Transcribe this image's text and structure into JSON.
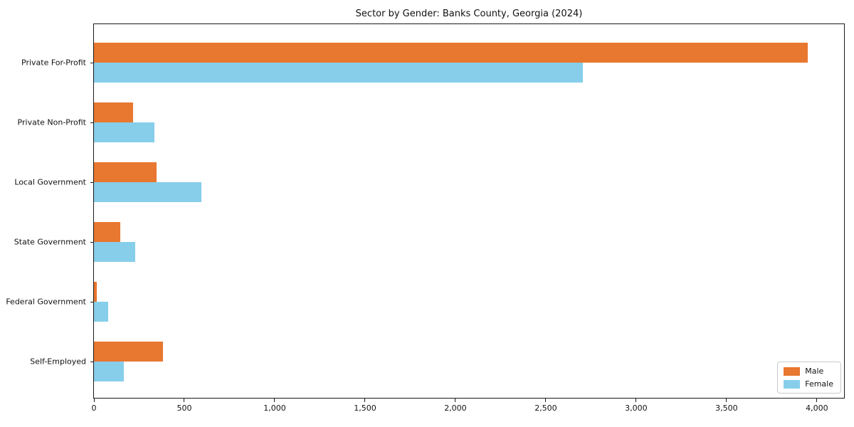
{
  "chart_data": {
    "type": "bar",
    "orientation": "horizontal",
    "title": "Sector by Gender: Banks County, Georgia (2024)",
    "categories": [
      "Private For-Profit",
      "Private Non-Profit",
      "Local Government",
      "State Government",
      "Federal Government",
      "Self-Employed"
    ],
    "series": [
      {
        "name": "Male",
        "color": "#e8772f",
        "values": [
          3950,
          215,
          345,
          145,
          15,
          380
        ]
      },
      {
        "name": "Female",
        "color": "#87ceeb",
        "values": [
          2705,
          335,
          595,
          230,
          78,
          165
        ]
      }
    ],
    "xlabel": "",
    "ylabel": "",
    "xlim": [
      0,
      4150
    ],
    "x_ticks": [
      0,
      500,
      1000,
      1500,
      2000,
      2500,
      3000,
      3500,
      4000
    ],
    "x_tick_labels": [
      "0",
      "500",
      "1,000",
      "1,500",
      "2,000",
      "2,500",
      "3,000",
      "3,500",
      "4,000"
    ],
    "grid": false,
    "legend_position": "lower right",
    "axis_color": "#1a1a1a",
    "background": "#ffffff"
  }
}
